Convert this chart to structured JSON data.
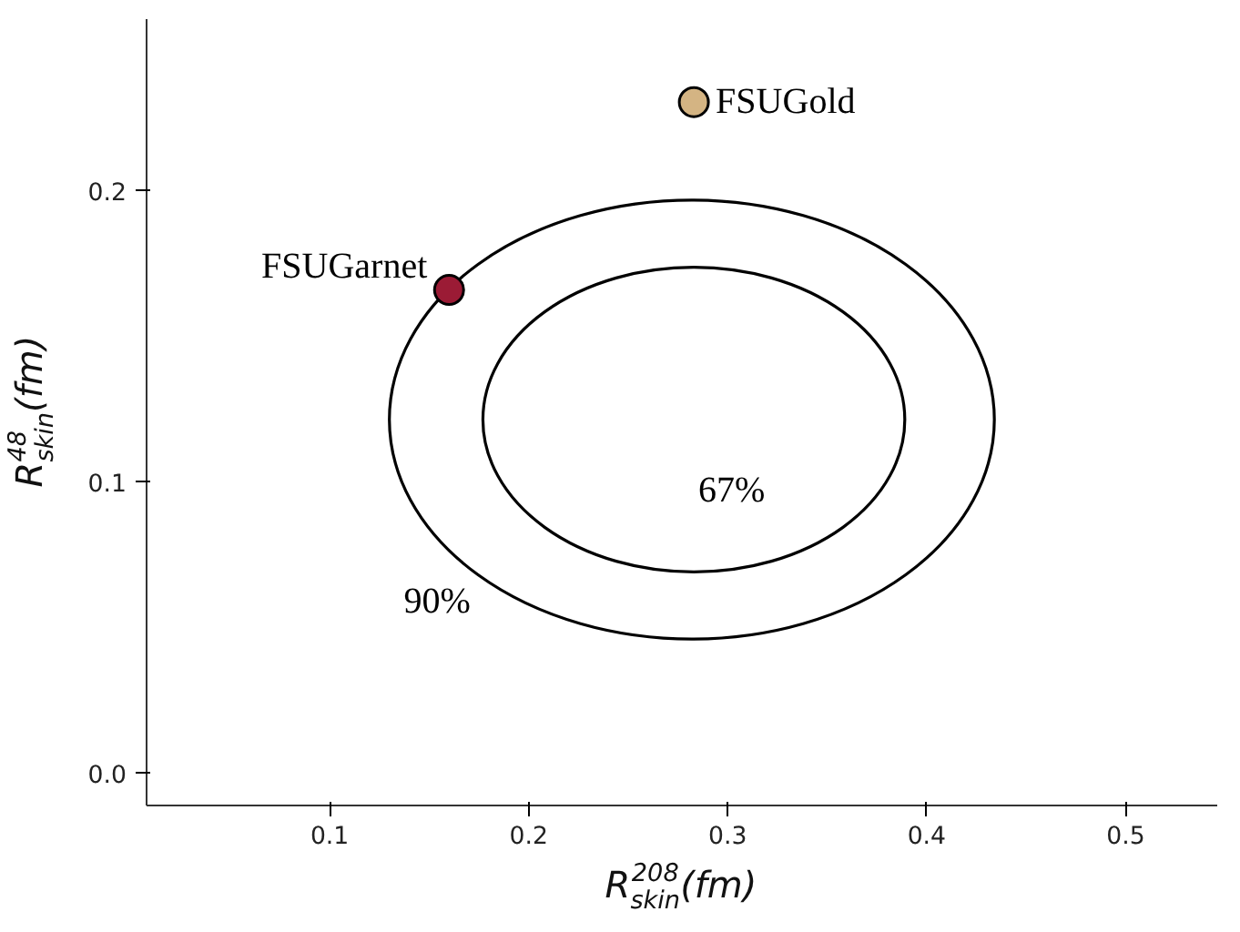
{
  "chart_data": {
    "type": "scatter",
    "xlabel": "R$^{208}$$_{skin}$(fm)",
    "ylabel": "R$^{48}$$_{skin}$(fm)",
    "xlim": [
      0.008,
      0.546
    ],
    "ylim": [
      -0.011,
      0.259
    ],
    "xticks": [
      0.1,
      0.2,
      0.3,
      0.4,
      0.5
    ],
    "yticks": [
      {
        "value": 0,
        "label": "0.0"
      },
      0.1,
      0.2
    ],
    "grid": false,
    "marker": "circle",
    "series": [
      {
        "name": "FSUGold",
        "color": "#d4b483",
        "x": [
          0.283
        ],
        "values": [
          0.2305
        ]
      },
      {
        "name": "FSUGarnet",
        "color": "#9b1b35",
        "x": [
          0.16
        ],
        "values": [
          0.166
        ]
      }
    ],
    "annotations": [
      "67%",
      "90%"
    ]
  }
}
